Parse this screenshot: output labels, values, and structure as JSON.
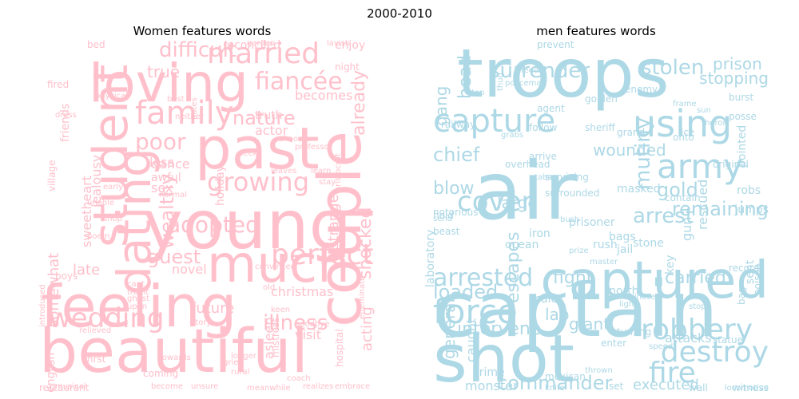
{
  "suptitle": "2000-2010",
  "colors": {
    "women": "#ffc0cb",
    "men": "#add8e6"
  },
  "women": {
    "title": "Women features words",
    "words": [
      "beautiful",
      "young",
      "feeling",
      "loving",
      "past",
      "student",
      "dating",
      "much",
      "couple",
      "family",
      "wedding",
      "married",
      "perfect",
      "growing",
      "adopted",
      "illness",
      "wealthy",
      "fiancée",
      "poor",
      "guest",
      "difficult",
      "nature",
      "shocked",
      "christmas",
      "true",
      "acting",
      "already",
      "future",
      "sex",
      "becomes",
      "less",
      "novel",
      "late",
      "actor",
      "visit",
      "somewhat",
      "english",
      "sweetheart",
      "jealousy",
      "asleep",
      "strange",
      "friends",
      "village",
      "enjoy",
      "night",
      "dance",
      "truth",
      "awful",
      "holiday",
      "reconciled",
      "bed",
      "fired",
      "boys",
      "first",
      "towards",
      "coming",
      "become",
      "unsure",
      "meanwhile",
      "realizes",
      "embrace",
      "restaurant",
      "hospital",
      "tragic",
      "story",
      "keen",
      "goodbye",
      "professor",
      "learn",
      "stay",
      "old",
      "convinced",
      "seeks",
      "garden",
      "neither",
      "lavish",
      "upon",
      "ghost",
      "cant",
      "poem",
      "shop",
      "rural",
      "grief",
      "longer",
      "physical",
      "dress",
      "unable",
      "early",
      "mistress",
      "leaves",
      "chooses",
      "aristocrat",
      "effeminate",
      "coach",
      "musical",
      "introduced",
      "relieved",
      "normal",
      "best",
      "hates"
    ]
  },
  "men": {
    "title": "men features words",
    "words": [
      "captain",
      "shot",
      "air",
      "troops",
      "captured",
      "capture",
      "using",
      "army",
      "force",
      "fire",
      "robbery",
      "destroy",
      "cover",
      "arrested",
      "loaded",
      "commander",
      "arrest",
      "gold",
      "stolen",
      "prison",
      "stopping",
      "surrender",
      "head",
      "gang",
      "chief",
      "blow",
      "large",
      "mutiny",
      "wounded",
      "remaining",
      "carried",
      "fight",
      "lab",
      "giant",
      "attacks",
      "executed",
      "escapes",
      "general",
      "intervene",
      "caught",
      "monster",
      "iron",
      "ocean",
      "laboratory",
      "beast",
      "notorious",
      "hold",
      "railway",
      "north",
      "rush",
      "scale",
      "prisoner",
      "masked",
      "stone",
      "bags",
      "jail",
      "gun",
      "rescued",
      "key",
      "sent",
      "jumps",
      "robs",
      "contain",
      "pointed",
      "original",
      "burst",
      "posse",
      "ice",
      "onto",
      "grand",
      "sheriff",
      "agent",
      "prevent",
      "overhead",
      "arrive",
      "surviving",
      "surrounded",
      "prize",
      "enter",
      "wall",
      "witness",
      "turning",
      "statue",
      "bag",
      "poison",
      "record",
      "crime",
      "set",
      "thrown",
      "mexican",
      "knife",
      "locomotive",
      "chinese",
      "stop",
      "send",
      "feed",
      "policeman",
      "thug",
      "follow",
      "golden",
      "enemy",
      "frame",
      "sun",
      "heroic",
      "top",
      "grabs",
      "stabs",
      "bush",
      "master",
      "light",
      "speed"
    ]
  }
}
